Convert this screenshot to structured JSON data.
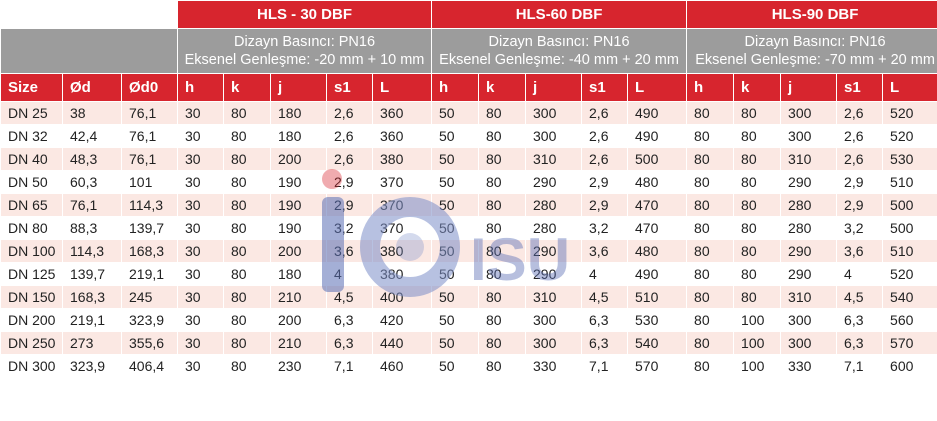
{
  "groups": [
    {
      "title": "HLS - 30 DBF",
      "pressure": "Dizayn Basıncı: PN16",
      "expansion": "Eksenel Genleşme: -20 mm + 10 mm"
    },
    {
      "title": "HLS-60 DBF",
      "pressure": "Dizayn Basıncı: PN16",
      "expansion": "Eksenel Genleşme: -40 mm + 20 mm"
    },
    {
      "title": "HLS-90 DBF",
      "pressure": "Dizayn Basıncı: PN16",
      "expansion": "Eksenel Genleşme: -70 mm + 20 mm"
    }
  ],
  "columns": [
    "Size",
    "Ød",
    "Ød0",
    "h",
    "k",
    "j",
    "s1",
    "L",
    "h",
    "k",
    "j",
    "s1",
    "L",
    "h",
    "k",
    "j",
    "s1",
    "L"
  ],
  "rows": [
    [
      "DN 25",
      "38",
      "76,1",
      "30",
      "80",
      "180",
      "2,6",
      "360",
      "50",
      "80",
      "300",
      "2,6",
      "490",
      "80",
      "80",
      "300",
      "2,6",
      "520"
    ],
    [
      "DN 32",
      "42,4",
      "76,1",
      "30",
      "80",
      "180",
      "2,6",
      "360",
      "50",
      "80",
      "300",
      "2,6",
      "490",
      "80",
      "80",
      "300",
      "2,6",
      "520"
    ],
    [
      "DN 40",
      "48,3",
      "76,1",
      "30",
      "80",
      "200",
      "2,6",
      "380",
      "50",
      "80",
      "310",
      "2,6",
      "500",
      "80",
      "80",
      "310",
      "2,6",
      "530"
    ],
    [
      "DN 50",
      "60,3",
      "101",
      "30",
      "80",
      "190",
      "2,9",
      "370",
      "50",
      "80",
      "290",
      "2,9",
      "480",
      "80",
      "80",
      "290",
      "2,9",
      "510"
    ],
    [
      "DN 65",
      "76,1",
      "114,3",
      "30",
      "80",
      "190",
      "2,9",
      "370",
      "50",
      "80",
      "280",
      "2,9",
      "470",
      "80",
      "80",
      "280",
      "2,9",
      "500"
    ],
    [
      "DN 80",
      "88,3",
      "139,7",
      "30",
      "80",
      "190",
      "3,2",
      "370",
      "50",
      "80",
      "280",
      "3,2",
      "470",
      "80",
      "80",
      "280",
      "3,2",
      "500"
    ],
    [
      "DN 100",
      "114,3",
      "168,3",
      "30",
      "80",
      "200",
      "3,6",
      "380",
      "50",
      "80",
      "290",
      "3,6",
      "480",
      "80",
      "80",
      "290",
      "3,6",
      "510"
    ],
    [
      "DN 125",
      "139,7",
      "219,1",
      "30",
      "80",
      "180",
      "4",
      "380",
      "50",
      "80",
      "290",
      "4",
      "490",
      "80",
      "80",
      "290",
      "4",
      "520"
    ],
    [
      "DN 150",
      "168,3",
      "245",
      "30",
      "80",
      "210",
      "4,5",
      "400",
      "50",
      "80",
      "310",
      "4,5",
      "510",
      "80",
      "80",
      "310",
      "4,5",
      "540"
    ],
    [
      "DN 200",
      "219,1",
      "323,9",
      "30",
      "80",
      "200",
      "6,3",
      "420",
      "50",
      "80",
      "300",
      "6,3",
      "530",
      "80",
      "100",
      "300",
      "6,3",
      "560"
    ],
    [
      "DN 250",
      "273",
      "355,6",
      "30",
      "80",
      "210",
      "6,3",
      "440",
      "50",
      "80",
      "300",
      "6,3",
      "540",
      "80",
      "100",
      "300",
      "6,3",
      "570"
    ],
    [
      "DN 300",
      "323,9",
      "406,4",
      "30",
      "80",
      "230",
      "7,1",
      "460",
      "50",
      "80",
      "330",
      "7,1",
      "570",
      "80",
      "100",
      "330",
      "7,1",
      "600"
    ]
  ],
  "watermark": {
    "text": "ISU",
    "colors": {
      "letter": "#5a6fb5",
      "circle": "#7d8fc9",
      "accent": "#d7252e"
    }
  },
  "colors": {
    "header_red": "#d7252e",
    "subheader_gray": "#9c9c9c",
    "stripe": "#fbe8e3"
  }
}
